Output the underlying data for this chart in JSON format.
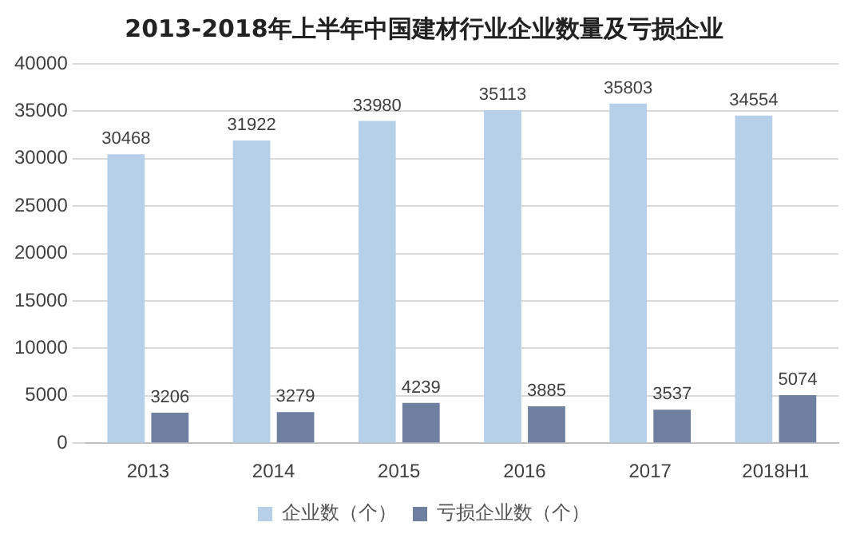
{
  "chart_data": {
    "type": "bar",
    "title": "2013-2018年上半年中国建材行业企业数量及亏损企业",
    "categories": [
      "2013",
      "2014",
      "2015",
      "2016",
      "2017",
      "2018H1"
    ],
    "series": [
      {
        "name": "企业数（个）",
        "color": "#b7d0ea",
        "values": [
          30468,
          31922,
          33980,
          35113,
          35803,
          34554
        ]
      },
      {
        "name": "亏损企业数（个）",
        "color": "#6e7f9f",
        "values": [
          3206,
          3279,
          4239,
          3885,
          3537,
          5074
        ]
      }
    ],
    "ylim": [
      0,
      40000
    ],
    "yticks": [
      0,
      5000,
      10000,
      15000,
      20000,
      25000,
      30000,
      35000,
      40000
    ],
    "grid": "y",
    "legend": "bottom",
    "data_labels": true
  }
}
